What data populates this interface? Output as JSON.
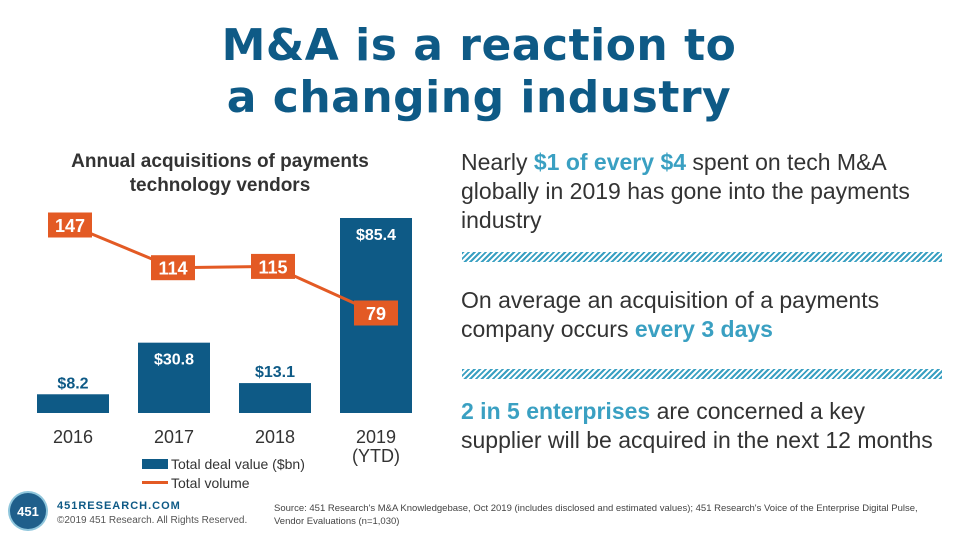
{
  "title_line1": "M&A is a reaction to",
  "title_line2": "a changing industry",
  "chart_data": {
    "type": "bar+line",
    "title": "Annual acquisitions of payments technology vendors",
    "categories": [
      "2016",
      "2017",
      "2018",
      "2019\n(YTD)"
    ],
    "series": [
      {
        "name": "Total deal value ($bn)",
        "type": "bar",
        "values": [
          8.2,
          30.8,
          13.1,
          85.4
        ],
        "labels": [
          "$8.2",
          "$30.8",
          "$13.1",
          "$85.4"
        ],
        "color": "#0e5a86"
      },
      {
        "name": "Total volume",
        "type": "line",
        "values": [
          147,
          114,
          115,
          79
        ],
        "labels": [
          "147",
          "114",
          "115",
          "79"
        ],
        "color": "#e35a24"
      }
    ],
    "legend": [
      "Total deal value ($bn)",
      "Total volume"
    ]
  },
  "facts": [
    {
      "parts": [
        {
          "text": "Nearly ",
          "hl": false
        },
        {
          "text": "$1 of every $4",
          "hl": true
        },
        {
          "text": " spent on tech M&A globally in 2019 has gone into the payments industry",
          "hl": false
        }
      ]
    },
    {
      "parts": [
        {
          "text": "On average an acquisition of a payments company occurs ",
          "hl": false
        },
        {
          "text": "every 3 days",
          "hl": true
        }
      ]
    },
    {
      "parts": [
        {
          "text": "2 in 5 enterprises",
          "hl": true
        },
        {
          "text": " are concerned a key supplier will be acquired in the next 12 months",
          "hl": false
        }
      ]
    }
  ],
  "footer": {
    "logo_text": "451",
    "brand": "451RESEARCH.COM",
    "copyright": "©2019 451 Research. All Rights Reserved.",
    "source": "Source: 451 Research's M&A Knowledgebase, Oct 2019 (includes disclosed and estimated values); 451 Research's Voice of the Enterprise Digital Pulse, Vendor Evaluations (n=1,030)"
  },
  "colors": {
    "bar": "#0e5a86",
    "line": "#e35a24",
    "highlight": "#3aa0c2"
  }
}
